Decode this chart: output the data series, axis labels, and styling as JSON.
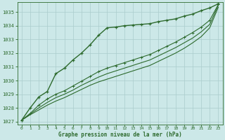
{
  "x": [
    0,
    1,
    2,
    3,
    4,
    5,
    6,
    7,
    8,
    9,
    10,
    11,
    12,
    13,
    14,
    15,
    16,
    17,
    18,
    19,
    20,
    21,
    22,
    23
  ],
  "line1": [
    1027.1,
    1028.0,
    1028.8,
    1029.2,
    1030.5,
    1030.9,
    1031.5,
    1032.0,
    1032.6,
    1033.3,
    1033.85,
    1033.9,
    1034.0,
    1034.05,
    1034.1,
    1034.15,
    1034.3,
    1034.4,
    1034.5,
    1034.7,
    1034.85,
    1035.1,
    1035.3,
    1035.6
  ],
  "line2": [
    1027.1,
    1027.6,
    1028.2,
    1028.65,
    1029.0,
    1029.25,
    1029.6,
    1029.95,
    1030.3,
    1030.65,
    1030.9,
    1031.1,
    1031.3,
    1031.5,
    1031.7,
    1031.9,
    1032.2,
    1032.5,
    1032.8,
    1033.15,
    1033.5,
    1033.9,
    1034.4,
    1035.55
  ],
  "line3": [
    1027.1,
    1027.55,
    1028.0,
    1028.4,
    1028.75,
    1029.0,
    1029.3,
    1029.65,
    1029.95,
    1030.25,
    1030.5,
    1030.7,
    1030.9,
    1031.1,
    1031.3,
    1031.5,
    1031.8,
    1032.1,
    1032.4,
    1032.75,
    1033.1,
    1033.55,
    1034.1,
    1035.5
  ],
  "line4": [
    1027.1,
    1027.5,
    1027.85,
    1028.2,
    1028.5,
    1028.75,
    1029.05,
    1029.35,
    1029.65,
    1029.9,
    1030.1,
    1030.3,
    1030.5,
    1030.7,
    1030.9,
    1031.1,
    1031.4,
    1031.7,
    1032.0,
    1032.35,
    1032.75,
    1033.2,
    1033.85,
    1035.35
  ],
  "line_color": "#2d6a2d",
  "bg_color": "#cce8e8",
  "grid_color": "#aacccc",
  "xlabel": "Graphe pression niveau de la mer (hPa)",
  "ylim_min": 1026.8,
  "ylim_max": 1035.7,
  "xlim_min": -0.5,
  "xlim_max": 23.5,
  "yticks": [
    1027,
    1028,
    1029,
    1030,
    1031,
    1032,
    1033,
    1034,
    1035
  ],
  "xticks": [
    0,
    1,
    2,
    3,
    4,
    5,
    6,
    7,
    8,
    9,
    10,
    11,
    12,
    13,
    14,
    15,
    16,
    17,
    18,
    19,
    20,
    21,
    22,
    23
  ]
}
